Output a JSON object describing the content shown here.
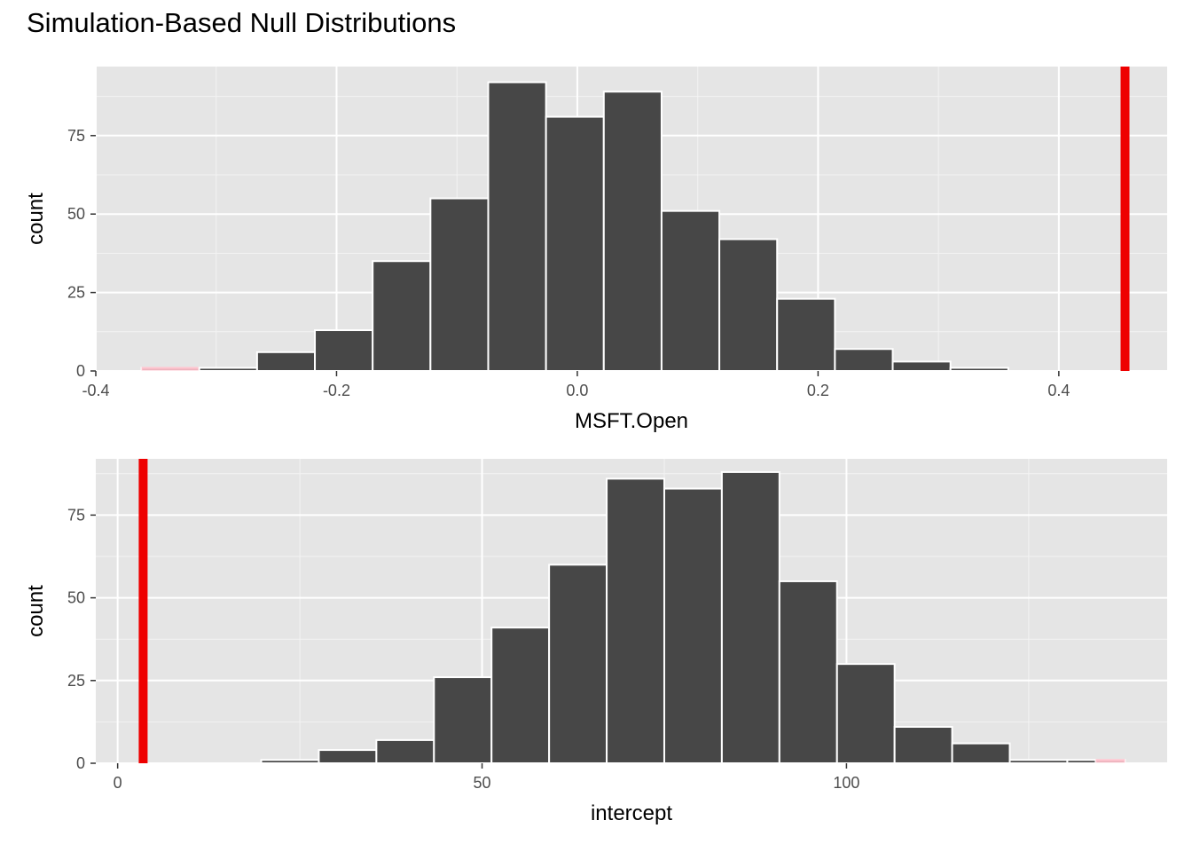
{
  "title": "Simulation-Based Null Distributions",
  "chart_data": [
    {
      "type": "bar",
      "subtype": "histogram",
      "xlabel": "MSFT.Open",
      "ylabel": "count",
      "xlim": [
        -0.4,
        0.49
      ],
      "ylim": [
        0,
        97
      ],
      "x_ticks": [
        -0.4,
        -0.2,
        0.0,
        0.2,
        0.4
      ],
      "x_tick_labels": [
        "-0.4",
        "-0.2",
        "0.0",
        "0.2",
        "0.4"
      ],
      "y_ticks": [
        0,
        25,
        50,
        75
      ],
      "y_tick_labels": [
        "0",
        "25",
        "50",
        "75"
      ],
      "bins": [
        {
          "x0": -0.362,
          "x1": -0.314,
          "count": 1
        },
        {
          "x0": -0.314,
          "x1": -0.266,
          "count": 1
        },
        {
          "x0": -0.266,
          "x1": -0.218,
          "count": 6
        },
        {
          "x0": -0.218,
          "x1": -0.17,
          "count": 13
        },
        {
          "x0": -0.17,
          "x1": -0.122,
          "count": 35
        },
        {
          "x0": -0.122,
          "x1": -0.074,
          "count": 55
        },
        {
          "x0": -0.074,
          "x1": -0.026,
          "count": 92
        },
        {
          "x0": -0.026,
          "x1": 0.022,
          "count": 81
        },
        {
          "x0": 0.022,
          "x1": 0.07,
          "count": 89
        },
        {
          "x0": 0.07,
          "x1": 0.118,
          "count": 51
        },
        {
          "x0": 0.118,
          "x1": 0.166,
          "count": 42
        },
        {
          "x0": 0.166,
          "x1": 0.214,
          "count": 23
        },
        {
          "x0": 0.214,
          "x1": 0.262,
          "count": 7
        },
        {
          "x0": 0.262,
          "x1": 0.31,
          "count": 3
        },
        {
          "x0": 0.31,
          "x1": 0.358,
          "count": 1
        }
      ],
      "shaded_bins": [
        0
      ],
      "observed_statistic": 0.455,
      "colors": {
        "bar": "#474747",
        "shade": "#ffc0cb",
        "observed": "#ee0000",
        "panel": "#e5e5e5"
      }
    },
    {
      "type": "bar",
      "subtype": "histogram",
      "xlabel": "intercept",
      "ylabel": "count",
      "xlim": [
        -3,
        144
      ],
      "ylim": [
        0,
        92
      ],
      "x_ticks": [
        0,
        50,
        100
      ],
      "x_tick_labels": [
        "0",
        "50",
        "100"
      ],
      "y_ticks": [
        0,
        25,
        50,
        75
      ],
      "y_tick_labels": [
        "0",
        "25",
        "50",
        "75"
      ],
      "bins": [
        {
          "x0": 19.7,
          "x1": 27.6,
          "count": 1
        },
        {
          "x0": 27.6,
          "x1": 35.5,
          "count": 4
        },
        {
          "x0": 35.5,
          "x1": 43.4,
          "count": 7
        },
        {
          "x0": 43.4,
          "x1": 51.3,
          "count": 26
        },
        {
          "x0": 51.3,
          "x1": 59.2,
          "count": 41
        },
        {
          "x0": 59.2,
          "x1": 67.1,
          "count": 60
        },
        {
          "x0": 67.1,
          "x1": 75.0,
          "count": 86
        },
        {
          "x0": 75.0,
          "x1": 82.9,
          "count": 83
        },
        {
          "x0": 82.9,
          "x1": 90.8,
          "count": 88
        },
        {
          "x0": 90.8,
          "x1": 98.7,
          "count": 55
        },
        {
          "x0": 98.7,
          "x1": 106.6,
          "count": 30
        },
        {
          "x0": 106.6,
          "x1": 114.5,
          "count": 11
        },
        {
          "x0": 114.5,
          "x1": 122.4,
          "count": 6
        },
        {
          "x0": 122.4,
          "x1": 130.3,
          "count": 1
        },
        {
          "x0": 130.3,
          "x1": 134.2,
          "count": 1
        },
        {
          "x0": 134.2,
          "x1": 138.2,
          "count": 1
        }
      ],
      "shaded_bins": [
        15
      ],
      "observed_statistic": 3.5,
      "colors": {
        "bar": "#474747",
        "shade": "#ffc0cb",
        "observed": "#ee0000",
        "panel": "#e5e5e5"
      }
    }
  ]
}
